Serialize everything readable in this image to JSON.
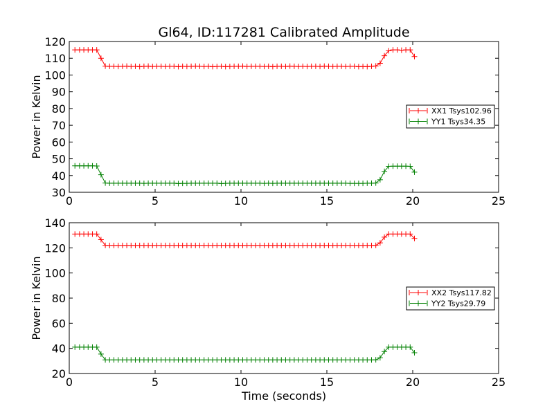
{
  "title": "Gl64, ID:117281 Calibrated Amplitude",
  "colors": {
    "red": "#ff0000",
    "green": "#008000"
  },
  "chart_data": [
    {
      "type": "line",
      "title": "Gl64, ID:117281 Calibrated Amplitude",
      "xlabel": "",
      "ylabel": "Power in Kelvin",
      "xlim": [
        0,
        25
      ],
      "ylim": [
        30,
        120
      ],
      "xticks": [
        0,
        5,
        10,
        15,
        20,
        25
      ],
      "yticks": [
        30,
        40,
        50,
        60,
        70,
        80,
        90,
        100,
        110,
        120
      ],
      "grid": false,
      "legend": "center-right",
      "series": [
        {
          "name": "XX1 Tsys102.96",
          "color": "#ff0000",
          "x": [
            0.33,
            0.6,
            0.85,
            1.1,
            1.35,
            1.6,
            1.85,
            2.1,
            2.35,
            2.6,
            2.85,
            3.1,
            3.35,
            3.6,
            3.85,
            4.1,
            4.35,
            4.6,
            4.85,
            5.1,
            5.35,
            5.6,
            5.85,
            6.1,
            6.35,
            6.6,
            6.85,
            7.1,
            7.35,
            7.6,
            7.85,
            8.1,
            8.35,
            8.6,
            8.85,
            9.1,
            9.35,
            9.6,
            9.85,
            10.1,
            10.35,
            10.6,
            10.85,
            11.1,
            11.35,
            11.6,
            11.85,
            12.1,
            12.35,
            12.6,
            12.85,
            13.1,
            13.35,
            13.6,
            13.85,
            14.1,
            14.35,
            14.6,
            14.85,
            15.1,
            15.35,
            15.6,
            15.85,
            16.1,
            16.35,
            16.6,
            16.85,
            17.1,
            17.35,
            17.6,
            17.85,
            18.1,
            18.35,
            18.6,
            18.85,
            19.1,
            19.35,
            19.6,
            19.85,
            20.1
          ],
          "values": [
            115,
            115,
            115,
            115,
            115,
            115,
            110,
            105.3,
            105.2,
            105.2,
            105.1,
            105.2,
            105.3,
            105.1,
            105.2,
            105.0,
            105.2,
            105.3,
            105.1,
            105.2,
            105.2,
            105.1,
            105.2,
            105.2,
            105.0,
            105.2,
            105.1,
            105.2,
            105.3,
            105.2,
            105.1,
            105.2,
            105.0,
            105.1,
            105.2,
            105.0,
            105.1,
            105.2,
            105.2,
            105.3,
            105.1,
            105.2,
            105.2,
            105.2,
            105.1,
            105.2,
            105.0,
            105.2,
            105.2,
            105.1,
            105.3,
            105.2,
            105.1,
            105.2,
            105.1,
            105.2,
            105.2,
            105.1,
            105.3,
            105.2,
            105.1,
            105.2,
            105.2,
            105.1,
            105.2,
            105.2,
            105.0,
            105.1,
            105.0,
            105.2,
            105.4,
            107,
            111.5,
            114.5,
            115,
            115,
            114.8,
            115,
            115,
            111
          ]
        },
        {
          "name": "YY1 Tsys34.35",
          "color": "#008000",
          "x": [
            0.33,
            0.6,
            0.85,
            1.1,
            1.35,
            1.6,
            1.85,
            2.1,
            2.35,
            2.6,
            2.85,
            3.1,
            3.35,
            3.6,
            3.85,
            4.1,
            4.35,
            4.6,
            4.85,
            5.1,
            5.35,
            5.6,
            5.85,
            6.1,
            6.35,
            6.6,
            6.85,
            7.1,
            7.35,
            7.6,
            7.85,
            8.1,
            8.35,
            8.6,
            8.85,
            9.1,
            9.35,
            9.6,
            9.85,
            10.1,
            10.35,
            10.6,
            10.85,
            11.1,
            11.35,
            11.6,
            11.85,
            12.1,
            12.35,
            12.6,
            12.85,
            13.1,
            13.35,
            13.6,
            13.85,
            14.1,
            14.35,
            14.6,
            14.85,
            15.1,
            15.35,
            15.6,
            15.85,
            16.1,
            16.35,
            16.6,
            16.85,
            17.1,
            17.35,
            17.6,
            17.85,
            18.1,
            18.35,
            18.6,
            18.85,
            19.1,
            19.35,
            19.6,
            19.85,
            20.1
          ],
          "values": [
            45.8,
            45.8,
            45.8,
            45.8,
            45.8,
            45.7,
            40.5,
            35.5,
            35.4,
            35.4,
            35.4,
            35.4,
            35.4,
            35.4,
            35.4,
            35.4,
            35.3,
            35.4,
            35.4,
            35.4,
            35.4,
            35.4,
            35.4,
            35.4,
            35.2,
            35.3,
            35.3,
            35.4,
            35.4,
            35.4,
            35.4,
            35.4,
            35.4,
            35.4,
            35.2,
            35.3,
            35.4,
            35.4,
            35.4,
            35.4,
            35.4,
            35.4,
            35.4,
            35.4,
            35.3,
            35.4,
            35.3,
            35.4,
            35.4,
            35.4,
            35.4,
            35.4,
            35.4,
            35.4,
            35.4,
            35.4,
            35.4,
            35.4,
            35.4,
            35.4,
            35.4,
            35.4,
            35.4,
            35.4,
            35.3,
            35.3,
            35.3,
            35.3,
            35.4,
            35.4,
            35.5,
            37.5,
            42.5,
            45.5,
            45.6,
            45.6,
            45.6,
            45.6,
            45.5,
            42
          ]
        }
      ]
    },
    {
      "type": "line",
      "title": "",
      "xlabel": "Time (seconds)",
      "ylabel": "Power in Kelvin",
      "xlim": [
        0,
        25
      ],
      "ylim": [
        20,
        140
      ],
      "xticks": [
        0,
        5,
        10,
        15,
        20,
        25
      ],
      "yticks": [
        20,
        40,
        60,
        80,
        100,
        120,
        140
      ],
      "grid": false,
      "legend": "center-right",
      "series": [
        {
          "name": "XX2 Tsys117.82",
          "color": "#ff0000",
          "x": [
            0.33,
            0.6,
            0.85,
            1.1,
            1.35,
            1.6,
            1.85,
            2.1,
            2.35,
            2.6,
            2.85,
            3.1,
            3.35,
            3.6,
            3.85,
            4.1,
            4.35,
            4.6,
            4.85,
            5.1,
            5.35,
            5.6,
            5.85,
            6.1,
            6.35,
            6.6,
            6.85,
            7.1,
            7.35,
            7.6,
            7.85,
            8.1,
            8.35,
            8.6,
            8.85,
            9.1,
            9.35,
            9.6,
            9.85,
            10.1,
            10.35,
            10.6,
            10.85,
            11.1,
            11.35,
            11.6,
            11.85,
            12.1,
            12.35,
            12.6,
            12.85,
            13.1,
            13.35,
            13.6,
            13.85,
            14.1,
            14.35,
            14.6,
            14.85,
            15.1,
            15.35,
            15.6,
            15.85,
            16.1,
            16.35,
            16.6,
            16.85,
            17.1,
            17.35,
            17.6,
            17.85,
            18.1,
            18.35,
            18.6,
            18.85,
            19.1,
            19.35,
            19.6,
            19.85,
            20.1
          ],
          "values": [
            131,
            131,
            131,
            131,
            131,
            131,
            126.5,
            122,
            121.9,
            121.9,
            121.9,
            121.9,
            121.9,
            121.9,
            121.9,
            121.9,
            121.9,
            121.9,
            121.9,
            121.9,
            121.9,
            121.9,
            121.9,
            121.9,
            121.9,
            121.9,
            121.9,
            121.9,
            121.9,
            121.9,
            121.9,
            121.9,
            121.9,
            121.9,
            121.9,
            121.9,
            121.9,
            121.9,
            121.9,
            121.9,
            121.9,
            121.9,
            121.9,
            121.9,
            121.9,
            121.9,
            121.9,
            121.9,
            121.9,
            121.9,
            121.9,
            121.9,
            121.9,
            121.9,
            121.9,
            121.9,
            121.9,
            121.9,
            121.9,
            121.9,
            121.9,
            121.9,
            121.9,
            121.9,
            121.9,
            121.9,
            121.9,
            121.9,
            121.9,
            121.9,
            122,
            124,
            128.5,
            131,
            131,
            131,
            131,
            131,
            131,
            127.5
          ]
        },
        {
          "name": "YY2 Tsys29.79",
          "color": "#008000",
          "x": [
            0.33,
            0.6,
            0.85,
            1.1,
            1.35,
            1.6,
            1.85,
            2.1,
            2.35,
            2.6,
            2.85,
            3.1,
            3.35,
            3.6,
            3.85,
            4.1,
            4.35,
            4.6,
            4.85,
            5.1,
            5.35,
            5.6,
            5.85,
            6.1,
            6.35,
            6.6,
            6.85,
            7.1,
            7.35,
            7.6,
            7.85,
            8.1,
            8.35,
            8.6,
            8.85,
            9.1,
            9.35,
            9.6,
            9.85,
            10.1,
            10.35,
            10.6,
            10.85,
            11.1,
            11.35,
            11.6,
            11.85,
            12.1,
            12.35,
            12.6,
            12.85,
            13.1,
            13.35,
            13.6,
            13.85,
            14.1,
            14.35,
            14.6,
            14.85,
            15.1,
            15.35,
            15.6,
            15.85,
            16.1,
            16.35,
            16.6,
            16.85,
            17.1,
            17.35,
            17.6,
            17.85,
            18.1,
            18.35,
            18.6,
            18.85,
            19.1,
            19.35,
            19.6,
            19.85,
            20.1
          ],
          "values": [
            41,
            41,
            41,
            41,
            41,
            41,
            35.5,
            30.8,
            30.8,
            30.8,
            30.8,
            30.8,
            30.8,
            30.8,
            30.8,
            30.8,
            30.8,
            30.8,
            30.8,
            30.8,
            30.8,
            30.8,
            30.8,
            30.8,
            30.8,
            30.8,
            30.8,
            30.8,
            30.8,
            30.8,
            30.8,
            30.8,
            30.8,
            30.8,
            30.8,
            30.8,
            30.8,
            30.8,
            30.8,
            30.8,
            30.8,
            30.8,
            30.8,
            30.8,
            30.8,
            30.8,
            30.8,
            30.8,
            30.8,
            30.8,
            30.8,
            30.8,
            30.8,
            30.8,
            30.8,
            30.8,
            30.8,
            30.8,
            30.8,
            30.8,
            30.8,
            30.8,
            30.8,
            30.8,
            30.8,
            30.8,
            30.8,
            30.8,
            30.8,
            30.8,
            30.9,
            32.5,
            37.5,
            41,
            41,
            41,
            41,
            41,
            41,
            36.5
          ]
        }
      ]
    }
  ]
}
